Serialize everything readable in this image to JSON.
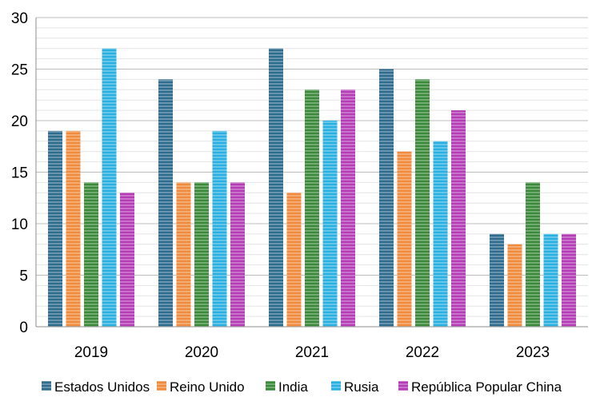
{
  "chart_data": {
    "type": "bar",
    "categories": [
      "2019",
      "2020",
      "2021",
      "2022",
      "2023"
    ],
    "series": [
      {
        "name": "Estados Unidos",
        "color": "#2e6c8e",
        "values": [
          19,
          24,
          27,
          25,
          9
        ]
      },
      {
        "name": "Reino Unido",
        "color": "#f08a3c",
        "values": [
          19,
          14,
          13,
          17,
          8
        ]
      },
      {
        "name": "India",
        "color": "#3a8a3a",
        "values": [
          14,
          14,
          23,
          24,
          14
        ]
      },
      {
        "name": "Rusia",
        "color": "#2ab0e0",
        "values": [
          27,
          19,
          20,
          18,
          9
        ]
      },
      {
        "name": "República Popular China",
        "color": "#b43cb4",
        "values": [
          13,
          14,
          23,
          21,
          9
        ]
      }
    ],
    "ylim": [
      0,
      30
    ],
    "yticks": [
      "0",
      "5",
      "10",
      "15",
      "20",
      "25",
      "30"
    ],
    "grid": true,
    "legend_position": "bottom"
  }
}
